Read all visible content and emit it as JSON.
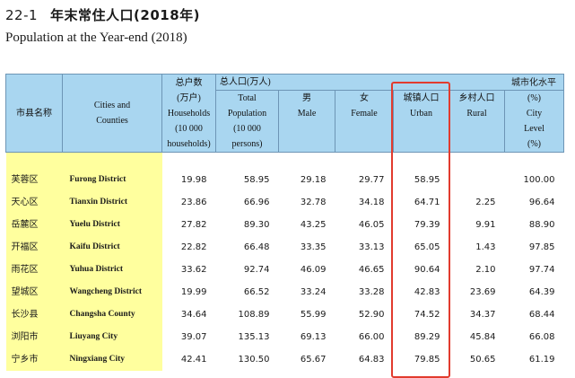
{
  "title": {
    "number": "22-1",
    "zh": "年末常住人口(2018年)",
    "en": "Population at the Year-end (2018)"
  },
  "headers": {
    "county_zh": "市县名称",
    "county_en": [
      "Cities and",
      "Counties"
    ],
    "households": [
      "总户数",
      "(万户)",
      "Households",
      "(10 000",
      "households)"
    ],
    "population_group": "总人口(万人)",
    "total": [
      "Total",
      "Population",
      "(10 000",
      "persons)"
    ],
    "male": [
      "男",
      "Male"
    ],
    "female": [
      "女",
      "Female"
    ],
    "urban": [
      "城镇人口",
      "Urban"
    ],
    "rural": [
      "乡村人口",
      "Rural"
    ],
    "urbanization": [
      "城市化水平",
      "(%)",
      "City",
      "Level",
      "(%)"
    ]
  },
  "rows": [
    {
      "zh": "芙蓉区",
      "en": "Furong District",
      "households": "19.98",
      "total": "58.95",
      "male": "29.18",
      "female": "29.77",
      "urban": "58.95",
      "rural": "",
      "level": "100.00"
    },
    {
      "zh": "天心区",
      "en": "Tianxin District",
      "households": "23.86",
      "total": "66.96",
      "male": "32.78",
      "female": "34.18",
      "urban": "64.71",
      "rural": "2.25",
      "level": "96.64"
    },
    {
      "zh": "岳麓区",
      "en": "Yuelu District",
      "households": "27.82",
      "total": "89.30",
      "male": "43.25",
      "female": "46.05",
      "urban": "79.39",
      "rural": "9.91",
      "level": "88.90"
    },
    {
      "zh": "开福区",
      "en": "Kaifu  District",
      "households": "22.82",
      "total": "66.48",
      "male": "33.35",
      "female": "33.13",
      "urban": "65.05",
      "rural": "1.43",
      "level": "97.85"
    },
    {
      "zh": "雨花区",
      "en": "Yuhua District",
      "households": "33.62",
      "total": "92.74",
      "male": "46.09",
      "female": "46.65",
      "urban": "90.64",
      "rural": "2.10",
      "level": "97.74"
    },
    {
      "zh": "望城区",
      "en": "Wangcheng District",
      "households": "19.99",
      "total": "66.52",
      "male": "33.24",
      "female": "33.28",
      "urban": "42.83",
      "rural": "23.69",
      "level": "64.39"
    },
    {
      "zh": "长沙县",
      "en": "Changsha County",
      "households": "34.64",
      "total": "108.89",
      "male": "55.99",
      "female": "52.90",
      "urban": "74.52",
      "rural": "34.37",
      "level": "68.44"
    },
    {
      "zh": "浏阳市",
      "en": "Liuyang City",
      "households": "39.07",
      "total": "135.13",
      "male": "69.13",
      "female": "66.00",
      "urban": "89.29",
      "rural": "45.84",
      "level": "66.08"
    },
    {
      "zh": "宁乡市",
      "en": "Ningxiang City",
      "households": "42.41",
      "total": "130.50",
      "male": "65.67",
      "female": "64.83",
      "urban": "79.85",
      "rural": "50.65",
      "level": "61.19"
    }
  ],
  "highlight_color": "#e23b2e"
}
